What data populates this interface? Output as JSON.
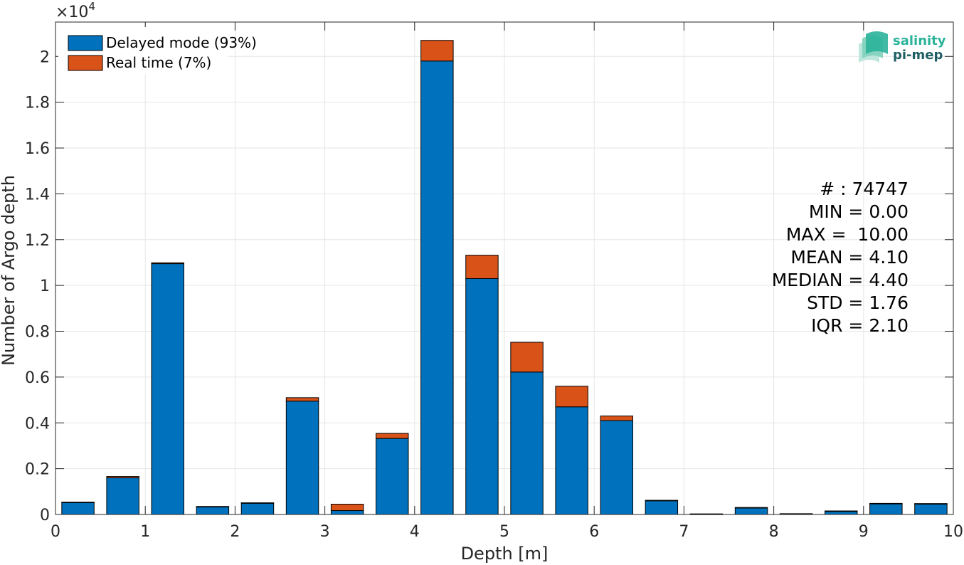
{
  "chart_data": {
    "type": "bar",
    "stacked": true,
    "bin_width": 0.5,
    "x": [
      0.25,
      0.75,
      1.25,
      1.75,
      2.25,
      2.75,
      3.25,
      3.75,
      4.25,
      4.75,
      5.25,
      5.75,
      6.25,
      6.75,
      7.25,
      7.75,
      8.25,
      8.75,
      9.25,
      9.75
    ],
    "series": [
      {
        "name": "Delayed mode (93%)",
        "color": "#0072BD",
        "values": [
          520,
          1600,
          10950,
          330,
          500,
          4950,
          170,
          3320,
          19800,
          10300,
          6220,
          4700,
          4100,
          600,
          20,
          300,
          30,
          150,
          480,
          470
        ]
      },
      {
        "name": "Real time (7%)",
        "color": "#D95319",
        "values": [
          20,
          60,
          40,
          20,
          10,
          150,
          280,
          220,
          900,
          1020,
          1300,
          900,
          200,
          20,
          5,
          5,
          5,
          5,
          5,
          5
        ]
      }
    ],
    "xlabel": "Depth [m]",
    "ylabel": "Number of Argo depth",
    "xlim": [
      0,
      10
    ],
    "ylim": [
      0,
      21500
    ],
    "xticks": [
      "0",
      "1",
      "2",
      "3",
      "4",
      "5",
      "6",
      "7",
      "8",
      "9",
      "10"
    ],
    "yticks": [
      "0",
      "0.2",
      "0.4",
      "0.6",
      "0.8",
      "1",
      "1.2",
      "1.4",
      "1.6",
      "1.8",
      "2"
    ],
    "y_exponent_label": "×10",
    "y_exponent_power": "4",
    "grid": true,
    "legend_position": "top-left",
    "annotations": [
      "# : 74747",
      "MIN = 0.00",
      "MAX =  10.00",
      "MEAN = 4.10",
      "MEDIAN = 4.40",
      "STD = 1.76",
      "IQR = 2.10"
    ]
  },
  "logo": {
    "line1": "salinity",
    "line2": "pi-mep",
    "color1": "#2bb39a",
    "color2": "#1f5f63"
  }
}
